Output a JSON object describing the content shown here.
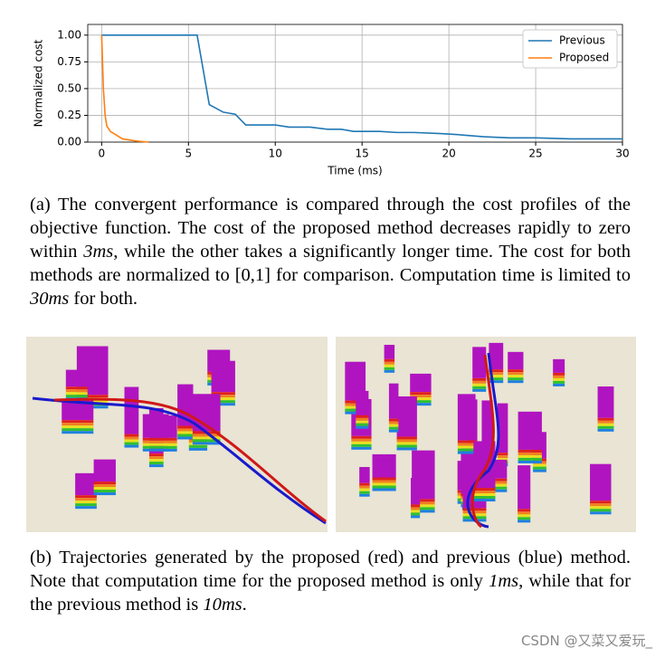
{
  "chart_data": {
    "type": "line",
    "xlabel": "Time (ms)",
    "ylabel": "Normalized cost",
    "xlim": [
      -0.8,
      30
    ],
    "ylim": [
      0,
      1.1
    ],
    "xticks": [
      0,
      5,
      10,
      15,
      20,
      25,
      30
    ],
    "yticks": [
      {
        "value": 0,
        "label": "0.00"
      },
      {
        "value": 0.25,
        "label": "0.25"
      },
      {
        "value": 0.5,
        "label": "0.50"
      },
      {
        "value": 0.75,
        "label": "0.75"
      },
      {
        "value": 1,
        "label": "1.00"
      }
    ],
    "grid": true,
    "legend": "upper right",
    "series": [
      {
        "name": "Previous",
        "color": "#1f77b4",
        "x": [
          0,
          5.5,
          6.2,
          7,
          7.7,
          8.3,
          10,
          10.8,
          12,
          13,
          13.8,
          14.5,
          16,
          17,
          18,
          19.5,
          20.5,
          22,
          23.5,
          25,
          27,
          30
        ],
        "values": [
          1,
          1,
          0.35,
          0.28,
          0.26,
          0.16,
          0.16,
          0.14,
          0.14,
          0.12,
          0.12,
          0.1,
          0.1,
          0.09,
          0.09,
          0.08,
          0.07,
          0.05,
          0.04,
          0.04,
          0.03,
          0.03
        ]
      },
      {
        "name": "Proposed",
        "color": "#ff7f0e",
        "x": [
          0,
          0.1,
          0.2,
          0.3,
          0.5,
          0.8,
          1.2,
          2,
          2.7
        ],
        "values": [
          1,
          0.5,
          0.25,
          0.15,
          0.1,
          0.07,
          0.03,
          0.01,
          0
        ]
      }
    ]
  },
  "caption_a": [
    "(a) The convergent performance is compared through the cost profiles of the objective function. The cost of the proposed method decreases rapidly to zero within ",
    "3ms",
    ", while the other takes a significantly longer time. The cost for both methods are normalized to [0,1] for comparison. Computation time is limited to ",
    "30ms",
    " for both."
  ],
  "caption_b": [
    "(b) Trajectories generated by the proposed (red) and previous (blue) method. Note that computation time for the proposed method is only ",
    "1ms",
    ", while that for the previous method is ",
    "10ms",
    "."
  ],
  "watermark": "CSDN @又菜又爱玩_"
}
